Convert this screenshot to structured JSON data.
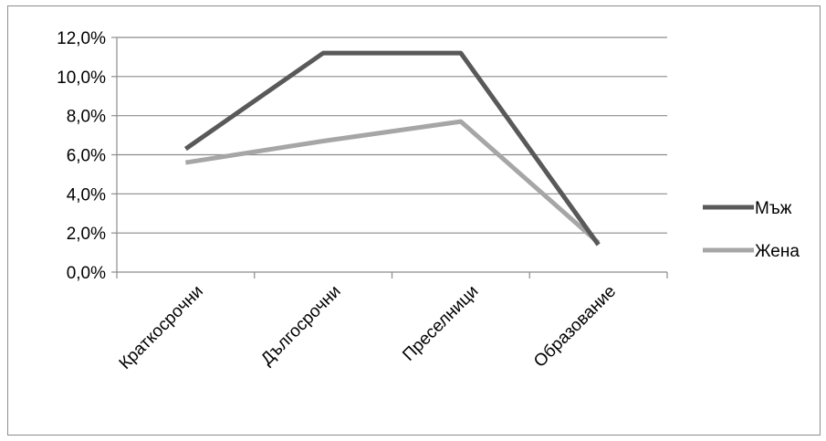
{
  "chart_data": {
    "type": "line",
    "categories": [
      "Краткосрочни",
      "Дългосрочни",
      "Преселници",
      "Образование"
    ],
    "series": [
      {
        "name": "Мъж",
        "color": "#595959",
        "values": [
          6.3,
          11.2,
          11.2,
          1.4
        ]
      },
      {
        "name": "Жена",
        "color": "#a6a6a6",
        "values": [
          5.6,
          6.7,
          7.7,
          1.5
        ]
      }
    ],
    "ylim": [
      0,
      12
    ],
    "yticks": [
      "0,0%",
      "2,0%",
      "4,0%",
      "6,0%",
      "8,0%",
      "10,0%",
      "12,0%"
    ],
    "grid": true,
    "legend_position": "right",
    "gridline_color": "#8c8c8c"
  }
}
